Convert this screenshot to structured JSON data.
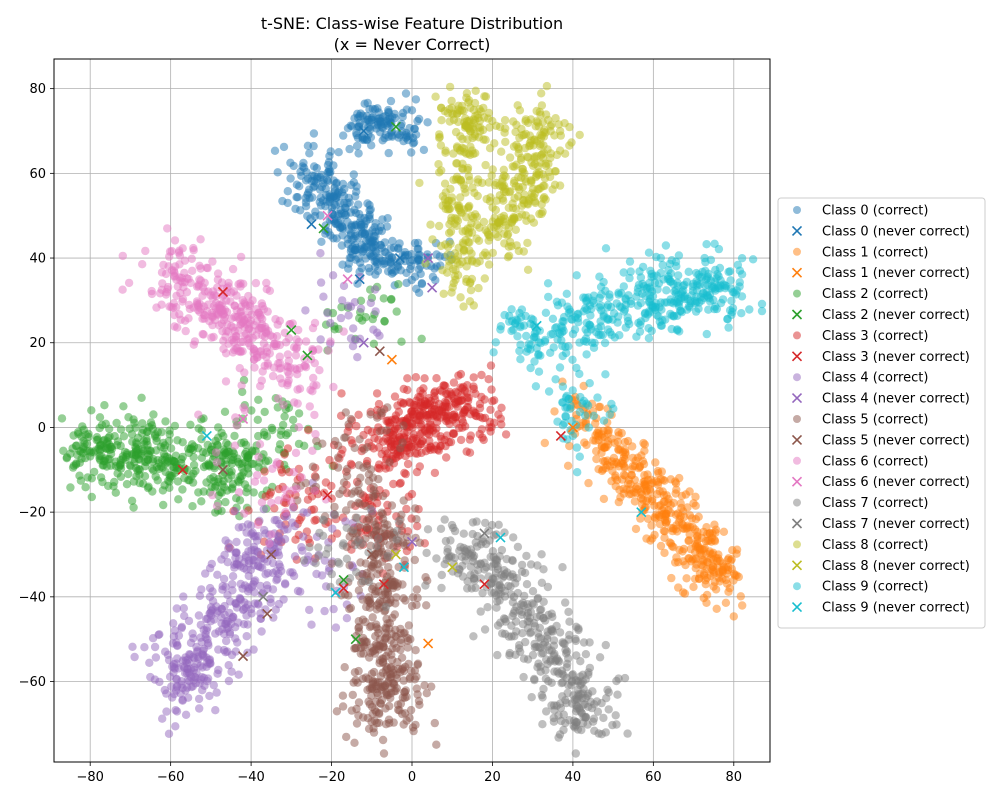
{
  "chart_data": {
    "type": "scatter",
    "title": "t-SNE: Class-wise Feature Distribution",
    "subtitle": "(x = Never Correct)",
    "xlabel": "",
    "ylabel": "",
    "xlim": [
      -89,
      89
    ],
    "ylim": [
      -79,
      87
    ],
    "xticks": [
      -80,
      -60,
      -40,
      -20,
      0,
      20,
      40,
      60,
      80
    ],
    "yticks": [
      -60,
      -40,
      -20,
      0,
      20,
      40,
      60,
      80
    ],
    "grid": true,
    "legend_position": "right",
    "series": [
      {
        "name": "Class 0 (correct)",
        "marker": "circle",
        "color": "#1f77b4",
        "clusters": [
          {
            "path": [
              [
                -28,
                62
              ],
              [
                -20,
                55
              ],
              [
                -14,
                47
              ],
              [
                -9,
                40
              ]
            ],
            "spread": 3.5,
            "n": 260
          },
          {
            "path": [
              [
                -14,
                70
              ],
              [
                -8,
                73
              ],
              [
                0,
                69
              ]
            ],
            "spread": 2.5,
            "n": 120
          },
          {
            "path": [
              [
                -11,
                41
              ],
              [
                -3,
                38
              ],
              [
                4,
                40
              ]
            ],
            "spread": 3,
            "n": 90
          }
        ]
      },
      {
        "name": "Class 0 (never correct)",
        "marker": "x",
        "color": "#1f77b4",
        "points": [
          [
            -12,
            70
          ],
          [
            -3,
            40
          ],
          [
            -13,
            35
          ],
          [
            -25,
            48
          ]
        ]
      },
      {
        "name": "Class 1 (correct)",
        "marker": "circle",
        "color": "#ff7f0e",
        "clusters": [
          {
            "path": [
              [
                41,
                5
              ],
              [
                50,
                -7
              ],
              [
                58,
                -15
              ],
              [
                66,
                -22
              ],
              [
                73,
                -30
              ],
              [
                76,
                -36
              ]
            ],
            "spread": 3.5,
            "n": 420
          }
        ]
      },
      {
        "name": "Class 1 (never correct)",
        "marker": "x",
        "color": "#ff7f0e",
        "points": [
          [
            -5,
            16
          ],
          [
            4,
            -51
          ],
          [
            40,
            0
          ]
        ]
      },
      {
        "name": "Class 2 (correct)",
        "marker": "circle",
        "color": "#2ca02c",
        "clusters": [
          {
            "path": [
              [
                -82,
                -5
              ],
              [
                -72,
                -7
              ],
              [
                -62,
                -8
              ],
              [
                -50,
                -9
              ],
              [
                -42,
                -10
              ]
            ],
            "spread": 4.5,
            "n": 420
          },
          {
            "path": [
              [
                -40,
                0
              ],
              [
                -30,
                -3
              ]
            ],
            "spread": 5,
            "n": 50
          },
          {
            "path": [
              [
                -15,
                25
              ],
              [
                -8,
                30
              ]
            ],
            "spread": 5,
            "n": 30
          }
        ]
      },
      {
        "name": "Class 2 (never correct)",
        "marker": "x",
        "color": "#2ca02c",
        "points": [
          [
            -26,
            17
          ],
          [
            -30,
            23
          ],
          [
            -22,
            47
          ],
          [
            -17,
            -36
          ],
          [
            -14,
            -50
          ],
          [
            -4,
            71
          ]
        ]
      },
      {
        "name": "Class 3 (correct)",
        "marker": "circle",
        "color": "#d62728",
        "clusters": [
          {
            "path": [
              [
                -8,
                -5
              ],
              [
                0,
                0
              ],
              [
                8,
                4
              ],
              [
                16,
                6
              ]
            ],
            "spread": 4.5,
            "n": 380
          },
          {
            "path": [
              [
                -20,
                -10
              ],
              [
                -12,
                -20
              ],
              [
                -5,
                -25
              ]
            ],
            "spread": 6,
            "n": 90
          },
          {
            "path": [
              [
                -35,
                -15
              ],
              [
                -28,
                -25
              ]
            ],
            "spread": 6,
            "n": 50
          }
        ]
      },
      {
        "name": "Class 3 (never correct)",
        "marker": "x",
        "color": "#d62728",
        "points": [
          [
            -47,
            32
          ],
          [
            -57,
            -10
          ],
          [
            -21,
            -16
          ],
          [
            -7,
            -37
          ],
          [
            -17,
            -38
          ],
          [
            18,
            -37
          ],
          [
            37,
            -2
          ]
        ]
      },
      {
        "name": "Class 4 (correct)",
        "marker": "circle",
        "color": "#9467bd",
        "clusters": [
          {
            "path": [
              [
                -33,
                -24
              ],
              [
                -40,
                -34
              ],
              [
                -47,
                -45
              ],
              [
                -55,
                -55
              ],
              [
                -58,
                -63
              ]
            ],
            "spread": 4.5,
            "n": 380
          },
          {
            "path": [
              [
                -18,
                -25
              ],
              [
                -26,
                -40
              ]
            ],
            "spread": 6,
            "n": 40
          },
          {
            "path": [
              [
                -20,
                30
              ],
              [
                -10,
                26
              ]
            ],
            "spread": 5,
            "n": 30
          }
        ]
      },
      {
        "name": "Class 4 (never correct)",
        "marker": "x",
        "color": "#9467bd",
        "points": [
          [
            4,
            40
          ],
          [
            5,
            33
          ],
          [
            -12,
            20
          ],
          [
            0,
            -27
          ]
        ]
      },
      {
        "name": "Class 5 (correct)",
        "marker": "circle",
        "color": "#8c564b",
        "clusters": [
          {
            "path": [
              [
                -8,
                -20
              ],
              [
                -8,
                -35
              ],
              [
                -8,
                -48
              ],
              [
                -7,
                -60
              ],
              [
                -6,
                -67
              ]
            ],
            "spread": 4.5,
            "n": 420
          },
          {
            "path": [
              [
                -20,
                -10
              ],
              [
                -10,
                -8
              ]
            ],
            "spread": 7,
            "n": 60
          }
        ]
      },
      {
        "name": "Class 5 (never correct)",
        "marker": "x",
        "color": "#8c564b",
        "points": [
          [
            -42,
            -54
          ],
          [
            -36,
            -44
          ],
          [
            -35,
            -30
          ],
          [
            -47,
            -10
          ],
          [
            -10,
            -30
          ],
          [
            -8,
            18
          ]
        ]
      },
      {
        "name": "Class 6 (correct)",
        "marker": "circle",
        "color": "#e377c2",
        "clusters": [
          {
            "path": [
              [
                -62,
                37
              ],
              [
                -52,
                30
              ],
              [
                -43,
                25
              ],
              [
                -33,
                19
              ],
              [
                -25,
                12
              ]
            ],
            "spread": 4.5,
            "n": 380
          },
          {
            "path": [
              [
                -40,
                -5
              ],
              [
                -30,
                -15
              ]
            ],
            "spread": 7,
            "n": 40
          }
        ]
      },
      {
        "name": "Class 6 (never correct)",
        "marker": "x",
        "color": "#e377c2",
        "points": [
          [
            -21,
            50
          ],
          [
            -16,
            35
          ],
          [
            -42,
            2
          ]
        ]
      },
      {
        "name": "Class 7 (correct)",
        "marker": "circle",
        "color": "#7f7f7f",
        "clusters": [
          {
            "path": [
              [
                10,
                -28
              ],
              [
                20,
                -33
              ],
              [
                28,
                -43
              ],
              [
                35,
                -53
              ],
              [
                41,
                -65
              ],
              [
                42,
                -70
              ]
            ],
            "spread": 4.5,
            "n": 420
          },
          {
            "path": [
              [
                -25,
                -25
              ],
              [
                -10,
                -30
              ]
            ],
            "spread": 6,
            "n": 40
          }
        ]
      },
      {
        "name": "Class 7 (never correct)",
        "marker": "x",
        "color": "#7f7f7f",
        "points": [
          [
            -37,
            -40
          ],
          [
            18,
            -25
          ]
        ]
      },
      {
        "name": "Class 8 (correct)",
        "marker": "circle",
        "color": "#bcbd22",
        "clusters": [
          {
            "path": [
              [
                12,
                76
              ],
              [
                15,
                70
              ],
              [
                12,
                55
              ],
              [
                13,
                43
              ],
              [
                12,
                35
              ]
            ],
            "spread": 3.5,
            "n": 250
          },
          {
            "path": [
              [
                32,
                74
              ],
              [
                30,
                64
              ],
              [
                26,
                54
              ],
              [
                22,
                43
              ]
            ],
            "spread": 4,
            "n": 250
          }
        ]
      },
      {
        "name": "Class 8 (never correct)",
        "marker": "x",
        "color": "#bcbd22",
        "points": [
          [
            -4,
            -30
          ],
          [
            10,
            -33
          ]
        ]
      },
      {
        "name": "Class 9 (correct)",
        "marker": "circle",
        "color": "#17becf",
        "clusters": [
          {
            "path": [
              [
                26,
                22
              ],
              [
                38,
                24
              ],
              [
                50,
                27
              ],
              [
                62,
                31
              ],
              [
                72,
                33
              ],
              [
                80,
                33
              ]
            ],
            "spread": 4,
            "n": 420
          },
          {
            "path": [
              [
                38,
                10
              ],
              [
                42,
                0
              ]
            ],
            "spread": 4,
            "n": 50
          }
        ]
      },
      {
        "name": "Class 9 (never correct)",
        "marker": "x",
        "color": "#17becf",
        "points": [
          [
            -51,
            -2
          ],
          [
            -19,
            -39
          ],
          [
            -2,
            -33
          ],
          [
            22,
            -26
          ],
          [
            57,
            -20
          ],
          [
            31,
            24
          ]
        ]
      }
    ]
  }
}
